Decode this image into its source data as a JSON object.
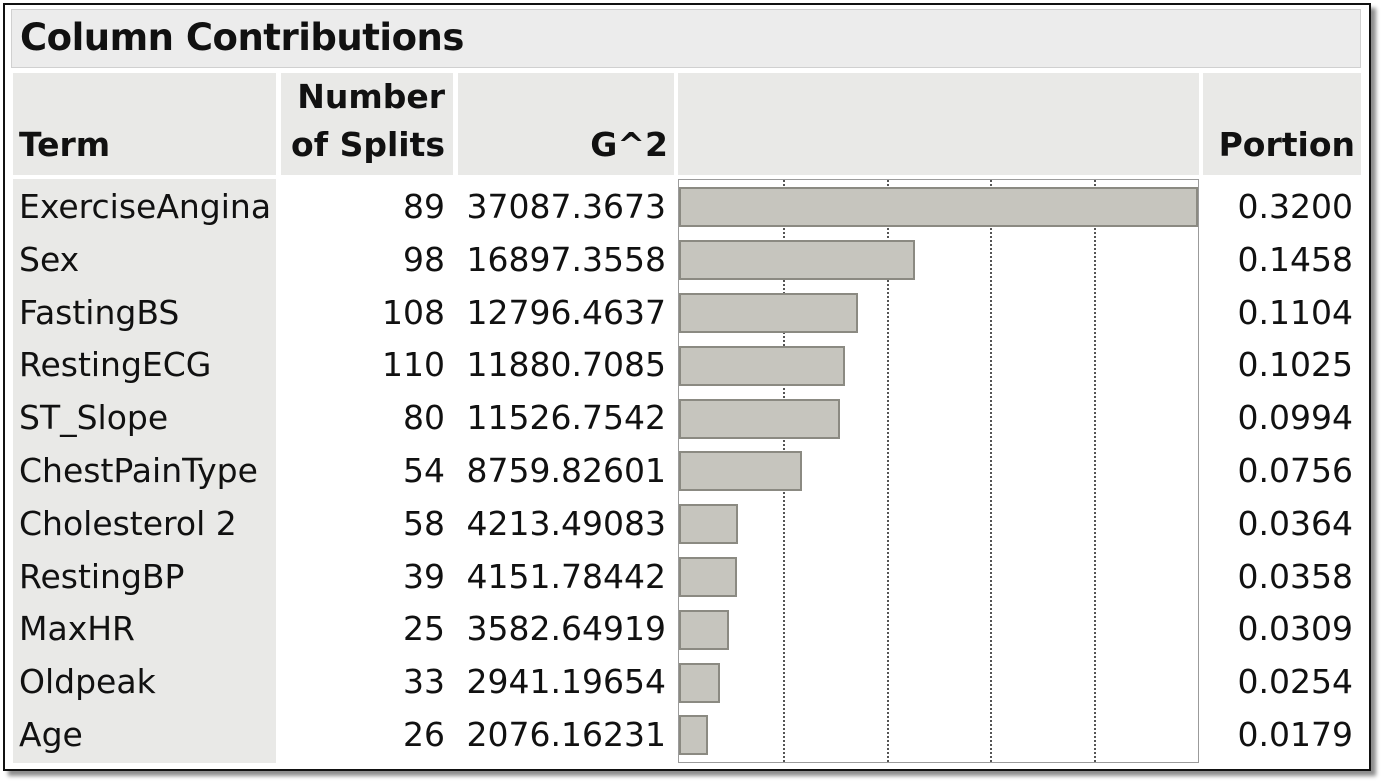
{
  "title": "Column Contributions",
  "headers": {
    "term": "Term",
    "splits_line1": "Number",
    "splits_line2": "of Splits",
    "g2": "G^2",
    "portion": "Portion"
  },
  "rows": [
    {
      "term": "ExerciseAngina",
      "splits": "89",
      "g2": "37087.3673",
      "portion": "0.3200"
    },
    {
      "term": "Sex",
      "splits": "98",
      "g2": "16897.3558",
      "portion": "0.1458"
    },
    {
      "term": "FastingBS",
      "splits": "108",
      "g2": "12796.4637",
      "portion": "0.1104"
    },
    {
      "term": "RestingECG",
      "splits": "110",
      "g2": "11880.7085",
      "portion": "0.1025"
    },
    {
      "term": "ST_Slope",
      "splits": "80",
      "g2": "11526.7542",
      "portion": "0.0994"
    },
    {
      "term": "ChestPainType",
      "splits": "54",
      "g2": "8759.82601",
      "portion": "0.0756"
    },
    {
      "term": "Cholesterol 2",
      "splits": "58",
      "g2": "4213.49083",
      "portion": "0.0364"
    },
    {
      "term": "RestingBP",
      "splits": "39",
      "g2": "4151.78442",
      "portion": "0.0358"
    },
    {
      "term": "MaxHR",
      "splits": "25",
      "g2": "3582.64919",
      "portion": "0.0309"
    },
    {
      "term": "Oldpeak",
      "splits": "33",
      "g2": "2941.19654",
      "portion": "0.0254"
    },
    {
      "term": "Age",
      "splits": "26",
      "g2": "2076.16231",
      "portion": "0.0179"
    }
  ],
  "chart_data": {
    "type": "bar",
    "orientation": "horizontal",
    "categories": [
      "ExerciseAngina",
      "Sex",
      "FastingBS",
      "RestingECG",
      "ST_Slope",
      "ChestPainType",
      "Cholesterol 2",
      "RestingBP",
      "MaxHR",
      "Oldpeak",
      "Age"
    ],
    "values": [
      0.32,
      0.1458,
      0.1104,
      0.1025,
      0.0994,
      0.0756,
      0.0364,
      0.0358,
      0.0309,
      0.0254,
      0.0179
    ],
    "xlim": [
      0,
      0.32
    ],
    "grid": true,
    "colors": {
      "bar_fill": "#c6c5be",
      "bar_border": "#8b8a82"
    }
  }
}
